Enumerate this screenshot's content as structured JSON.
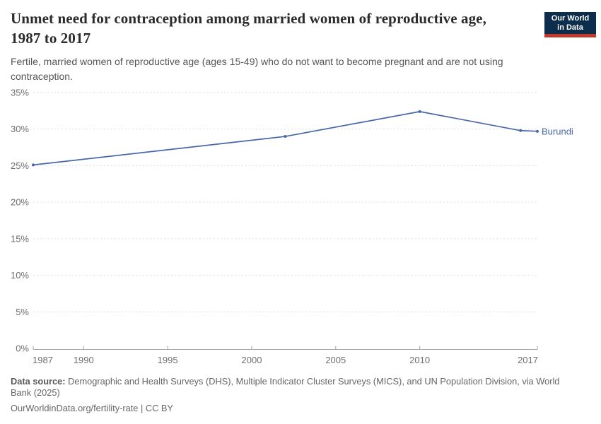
{
  "header": {
    "title": "Unmet need for contraception among married women of reproductive age, 1987 to 2017",
    "subtitle": "Fertile, married women of reproductive age (ages 15-49) who do not want to become pregnant and are not using contraception.",
    "logo": {
      "line1": "Our World",
      "line2": "in Data"
    }
  },
  "chart_data": {
    "type": "line",
    "title": "Unmet need for contraception among married women of reproductive age, 1987 to 2017",
    "x": [
      1987,
      2002,
      2010,
      2016,
      2017
    ],
    "series": [
      {
        "name": "Burundi",
        "values": [
          25.1,
          29.0,
          32.4,
          29.8,
          29.7
        ]
      }
    ],
    "xticks": [
      1987,
      1990,
      1995,
      2000,
      2005,
      2010,
      2017
    ],
    "yticks": [
      0,
      5,
      10,
      15,
      20,
      25,
      30,
      35
    ],
    "ytick_suffix": "%",
    "xlim": [
      1987,
      2017
    ],
    "ylim": [
      0,
      35
    ],
    "grid": "horizontal-dashed",
    "legend_position": "end-of-line",
    "line_color": "#4767a8"
  },
  "footer": {
    "data_source_label": "Data source:",
    "data_source_text": "Demographic and Health Surveys (DHS), Multiple Indicator Cluster Surveys (MICS), and UN Population Division, via World Bank (2025)",
    "citation": "OurWorldinData.org/fertility-rate | CC BY"
  },
  "colors": {
    "line": "#4767a8",
    "grid": "#dedede",
    "axis": "#a3a3a3",
    "title_text": "#2b2b2b",
    "subtitle_text": "#555555",
    "tick_label": "#6e6e6e",
    "footer_text": "#666666",
    "logo_bg": "#0d2d4d",
    "logo_red": "#c0392b"
  }
}
